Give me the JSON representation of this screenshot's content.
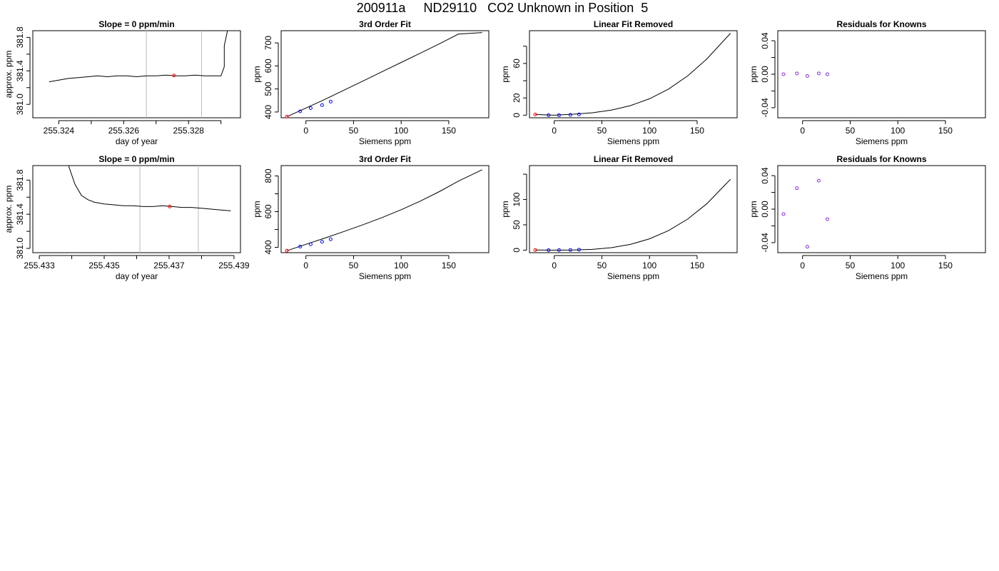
{
  "page_title": "200911a     ND29110   CO2 Unknown in Position  5",
  "chart_data": [
    {
      "type": "line",
      "title": "Slope =  0  ppm/min",
      "xlabel": "day of year",
      "ylabel": "approx. ppm",
      "xlim": [
        255.3232,
        255.3296
      ],
      "ylim": [
        380.84,
        381.88
      ],
      "xticks": [
        255.324,
        255.325,
        255.326,
        255.327,
        255.328,
        255.329
      ],
      "xtick_labels": [
        "255.324",
        "",
        "255.326",
        "",
        "255.328",
        ""
      ],
      "yticks": [
        381.0,
        381.2,
        381.4,
        381.6,
        381.8
      ],
      "ytick_labels": [
        "381.0",
        "",
        "381.4",
        "",
        "381.8"
      ],
      "vlines": [
        255.3267,
        255.3284
      ],
      "series": [
        {
          "x": [
            255.3237,
            255.324,
            255.3243,
            255.3246,
            255.3249,
            255.3252,
            255.3255,
            255.3258,
            255.3261,
            255.3264,
            255.3267,
            255.327,
            255.3273,
            255.3276,
            255.3279,
            255.3282,
            255.3285,
            255.3288,
            255.329,
            255.3291,
            255.3291,
            255.3292
          ],
          "y": [
            381.27,
            381.29,
            381.31,
            381.32,
            381.33,
            381.34,
            381.33,
            381.34,
            381.34,
            381.33,
            381.34,
            381.34,
            381.35,
            381.34,
            381.34,
            381.35,
            381.34,
            381.34,
            381.34,
            381.45,
            381.7,
            381.88
          ]
        }
      ],
      "highlight_points": [
        {
          "x": 255.32755,
          "y": 381.345
        }
      ]
    },
    {
      "type": "line",
      "title": "3rd Order Fit",
      "xlabel": "Siemens ppm",
      "ylabel": "ppm",
      "xlim": [
        -26,
        192
      ],
      "ylim": [
        375,
        753
      ],
      "xticks": [
        0,
        50,
        100,
        150
      ],
      "xtick_labels": [
        "0",
        "50",
        "100",
        "150"
      ],
      "yticks": [
        400,
        500,
        600,
        700
      ],
      "ytick_labels": [
        "400",
        "500",
        "600",
        "700"
      ],
      "series": [
        {
          "x": [
            -20,
            0,
            20,
            40,
            60,
            80,
            100,
            120,
            140,
            160,
            185
          ],
          "y": [
            380,
            417,
            455,
            495,
            535,
            575,
            615,
            655,
            696,
            738,
            745
          ]
        }
      ],
      "points": [
        {
          "x": -6,
          "y": 403
        },
        {
          "x": 5,
          "y": 417
        },
        {
          "x": 17,
          "y": 430
        },
        {
          "x": 26,
          "y": 445
        }
      ],
      "highlight_points": [
        {
          "x": -20,
          "y": 380
        }
      ]
    },
    {
      "type": "line",
      "title": "Linear Fit Removed",
      "xlabel": "Siemens ppm",
      "ylabel": "ppm",
      "xlim": [
        -26,
        192
      ],
      "ylim": [
        -3,
        98
      ],
      "xticks": [
        0,
        50,
        100,
        150
      ],
      "xtick_labels": [
        "0",
        "50",
        "100",
        "150"
      ],
      "yticks": [
        0,
        20,
        40,
        60,
        80
      ],
      "ytick_labels": [
        "0",
        "20",
        "",
        "60",
        ""
      ],
      "series": [
        {
          "x": [
            -20,
            0,
            20,
            40,
            60,
            80,
            100,
            120,
            140,
            160,
            185
          ],
          "y": [
            0.8,
            0,
            1.1,
            2.8,
            5.9,
            11.1,
            19.0,
            30.3,
            45.5,
            65.0,
            95.0
          ]
        }
      ],
      "points": [
        {
          "x": -6,
          "y": 0
        },
        {
          "x": 5,
          "y": 0.05
        },
        {
          "x": 17,
          "y": 0.4
        },
        {
          "x": 26,
          "y": 0.9
        }
      ],
      "highlight_points": [
        {
          "x": -20,
          "y": 0.8
        }
      ]
    },
    {
      "type": "scatter",
      "title": "Residuals for Knowns",
      "xlabel": "Siemens ppm",
      "ylabel": "ppm",
      "xlim": [
        -26,
        192
      ],
      "ylim": [
        -0.052,
        0.052
      ],
      "xticks": [
        0,
        50,
        100,
        150
      ],
      "xtick_labels": [
        "0",
        "50",
        "100",
        "150"
      ],
      "yticks": [
        -0.04,
        -0.02,
        0.0,
        0.02,
        0.04
      ],
      "ytick_labels": [
        "-0.04",
        "",
        "0.00",
        "",
        "0.04"
      ],
      "points": [
        {
          "x": -20,
          "y": 0.0
        },
        {
          "x": -6,
          "y": 0.001
        },
        {
          "x": 5,
          "y": -0.002
        },
        {
          "x": 17,
          "y": 0.001
        },
        {
          "x": 26,
          "y": 0.0
        }
      ]
    },
    {
      "type": "line",
      "title": "Slope =  0  ppm/min",
      "xlabel": "day of year",
      "ylabel": "approx. ppm",
      "xlim": [
        255.4328,
        255.4392
      ],
      "ylim": [
        380.95,
        381.97
      ],
      "xticks": [
        255.433,
        255.434,
        255.435,
        255.436,
        255.437,
        255.438,
        255.439
      ],
      "xtick_labels": [
        "255.433",
        "",
        "255.435",
        "",
        "255.437",
        "",
        "255.439"
      ],
      "yticks": [
        381.0,
        381.2,
        381.4,
        381.6,
        381.8
      ],
      "ytick_labels": [
        "381.0",
        "",
        "381.4",
        "",
        "381.8"
      ],
      "vlines": [
        255.4361,
        255.4379
      ],
      "series": [
        {
          "x": [
            255.4339,
            255.4341,
            255.4343,
            255.4345,
            255.4347,
            255.435,
            255.4353,
            255.4356,
            255.4359,
            255.4362,
            255.4365,
            255.4368,
            255.4371,
            255.4374,
            255.4377,
            255.438,
            255.4383,
            255.4386,
            255.4389
          ],
          "y": [
            381.97,
            381.75,
            381.62,
            381.57,
            381.54,
            381.52,
            381.51,
            381.5,
            381.5,
            381.49,
            381.49,
            381.5,
            381.49,
            381.48,
            381.48,
            381.47,
            381.46,
            381.45,
            381.44
          ]
        }
      ],
      "highlight_points": [
        {
          "x": 255.43702,
          "y": 381.49
        }
      ]
    },
    {
      "type": "line",
      "title": "3rd Order Fit",
      "xlabel": "Siemens ppm",
      "ylabel": "ppm",
      "xlim": [
        -26,
        192
      ],
      "ylim": [
        370,
        858
      ],
      "xticks": [
        0,
        50,
        100,
        150
      ],
      "xtick_labels": [
        "0",
        "50",
        "100",
        "150"
      ],
      "yticks": [
        400,
        500,
        600,
        700,
        800
      ],
      "ytick_labels": [
        "400",
        "",
        "600",
        "",
        "800"
      ],
      "series": [
        {
          "x": [
            -20,
            0,
            20,
            40,
            60,
            80,
            100,
            120,
            140,
            160,
            185
          ],
          "y": [
            381,
            417,
            452,
            489,
            527,
            567,
            611,
            659,
            712,
            771,
            835
          ]
        }
      ],
      "points": [
        {
          "x": -6,
          "y": 404
        },
        {
          "x": 5,
          "y": 417
        },
        {
          "x": 17,
          "y": 431
        },
        {
          "x": 26,
          "y": 445
        }
      ],
      "highlight_points": [
        {
          "x": -20,
          "y": 381
        }
      ]
    },
    {
      "type": "line",
      "title": "Linear Fit Removed",
      "xlabel": "Siemens ppm",
      "ylabel": "ppm",
      "xlim": [
        -26,
        192
      ],
      "ylim": [
        -5,
        167
      ],
      "xticks": [
        0,
        50,
        100,
        150
      ],
      "xtick_labels": [
        "0",
        "50",
        "100",
        "150"
      ],
      "yticks": [
        0,
        50,
        100,
        150
      ],
      "ytick_labels": [
        "0",
        "50",
        "100",
        ""
      ],
      "series": [
        {
          "x": [
            -20,
            0,
            20,
            40,
            60,
            80,
            100,
            120,
            140,
            160,
            185
          ],
          "y": [
            0.3,
            0,
            0.2,
            1.5,
            4.8,
            11.4,
            22.3,
            38.5,
            61.2,
            91.3,
            140.0
          ]
        }
      ],
      "points": [
        {
          "x": -6,
          "y": 0
        },
        {
          "x": 5,
          "y": 0.1
        },
        {
          "x": 17,
          "y": 0.4
        },
        {
          "x": 26,
          "y": 0.9
        }
      ],
      "highlight_points": [
        {
          "x": -20,
          "y": 0.3
        }
      ]
    },
    {
      "type": "scatter",
      "title": "Residuals for Knowns",
      "xlabel": "Siemens ppm",
      "ylabel": "ppm",
      "xlim": [
        -26,
        192
      ],
      "ylim": [
        -0.052,
        0.052
      ],
      "xticks": [
        0,
        50,
        100,
        150
      ],
      "xtick_labels": [
        "0",
        "50",
        "100",
        "150"
      ],
      "yticks": [
        -0.04,
        -0.02,
        0.0,
        0.02,
        0.04
      ],
      "ytick_labels": [
        "-0.04",
        "",
        "0.00",
        "",
        "0.04"
      ],
      "points": [
        {
          "x": -20,
          "y": -0.006
        },
        {
          "x": -6,
          "y": 0.025
        },
        {
          "x": 5,
          "y": -0.045
        },
        {
          "x": 17,
          "y": 0.034
        },
        {
          "x": 26,
          "y": -0.012
        }
      ]
    }
  ]
}
